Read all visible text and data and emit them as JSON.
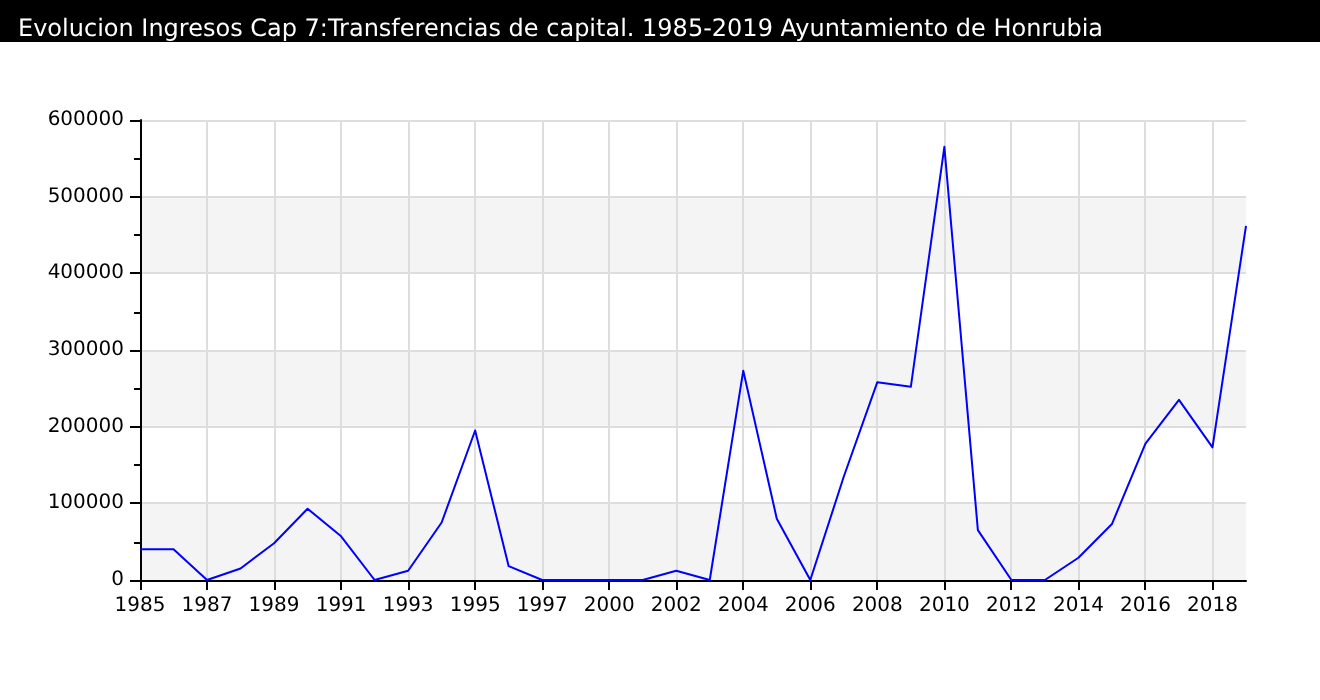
{
  "chart_data": {
    "type": "line",
    "title": "Evolucion Ingresos Cap 7:Transferencias de capital. 1985-2019 Ayuntamiento de Honrubia",
    "categories": [
      "1985",
      null,
      "1987",
      null,
      "1989",
      null,
      "1991",
      null,
      "1993",
      null,
      "1995",
      null,
      "1997",
      null,
      "2000",
      null,
      "2002",
      null,
      "2004",
      null,
      "2006",
      null,
      "2008",
      null,
      "2010",
      null,
      "2012",
      null,
      "2014",
      null,
      "2016",
      null,
      "2018",
      null
    ],
    "series": [
      {
        "color": "#0000ff",
        "values": [
          40000,
          40000,
          0,
          15000,
          48000,
          93000,
          57000,
          0,
          12000,
          75000,
          195000,
          18000,
          0,
          0,
          0,
          0,
          12000,
          0,
          273000,
          80000,
          0,
          135000,
          258000,
          252000,
          565000,
          65000,
          0,
          0,
          29000,
          73000,
          178000,
          235000,
          173000,
          462000
        ]
      }
    ],
    "ylim": [
      0,
      600000
    ],
    "yticks": [
      0,
      100000,
      200000,
      300000,
      400000,
      500000,
      600000
    ],
    "grid": true,
    "marker": "none",
    "line_style": "solid"
  }
}
